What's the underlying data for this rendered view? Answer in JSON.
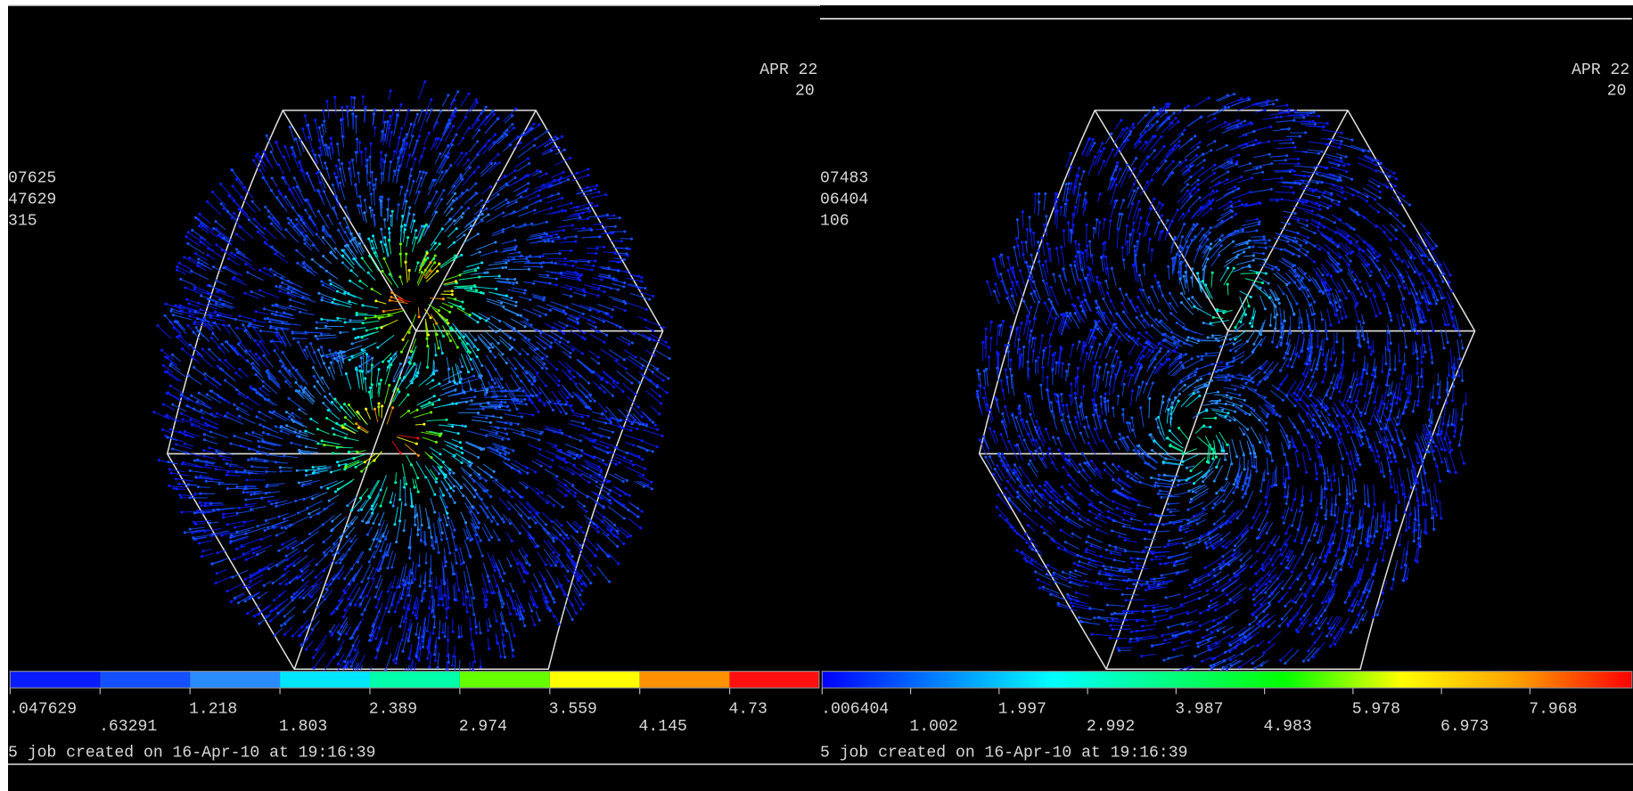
{
  "panels": [
    {
      "date": "APR 22",
      "year": "20",
      "info": [
        "07625",
        "47629",
        "315"
      ],
      "legend_labels": [
        ".047629",
        ".63291",
        "1.218",
        "1.803",
        "2.389",
        "2.974",
        "3.559",
        "4.145",
        "4.73"
      ],
      "footer": "5 job created on 16-Apr-10 at 19:16:39"
    },
    {
      "date": "APR 22",
      "year": "20",
      "info": [
        "07483",
        "06404",
        "106"
      ],
      "legend_labels": [
        ".006404",
        "1.002",
        "1.997",
        "2.992",
        "3.987",
        "4.983",
        "5.978",
        "6.973",
        "7.968"
      ],
      "footer": "5 job created on 16-Apr-10 at 19:16:39"
    }
  ]
}
